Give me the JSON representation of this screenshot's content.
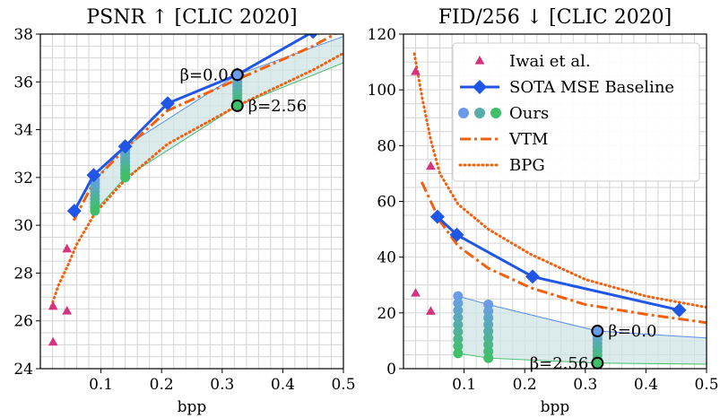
{
  "colors": {
    "iwai": "#d6337f",
    "sota": "#1f56e6",
    "vtm": "#f2600d",
    "bpg": "#f2600d",
    "band_fill": "#cfe3e3",
    "band_upper": "#5b8fe8",
    "band_lower": "#3fbf6a",
    "ours_top": "#6a9be8",
    "ours_bottom": "#3fbf6a",
    "grid": "#d4d4d4"
  },
  "chart_data": [
    {
      "type": "line",
      "title": "PSNR ↑ [CLIC 2020]",
      "xlabel": "bpp",
      "ylabel": "",
      "xlim": [
        0,
        0.5
      ],
      "ylim": [
        24,
        38
      ],
      "xticks": [
        "0.1",
        "0.2",
        "0.3",
        "0.4",
        "0.5"
      ],
      "xtick_values": [
        0.1,
        0.2,
        0.3,
        0.4,
        0.5
      ],
      "yticks": [
        "24",
        "26",
        "28",
        "30",
        "32",
        "34",
        "36",
        "38"
      ],
      "ytick_values": [
        24,
        26,
        28,
        30,
        32,
        34,
        36,
        38
      ],
      "grid": true,
      "series": [
        {
          "key": "iwai",
          "type": "scatter",
          "x": [
            0.021,
            0.021,
            0.044,
            0.044
          ],
          "y": [
            26.6,
            25.1,
            29.0,
            26.4
          ]
        },
        {
          "key": "sota",
          "type": "line",
          "x": [
            0.056,
            0.088,
            0.14,
            0.21,
            0.325,
            0.45
          ],
          "y": [
            30.6,
            32.1,
            33.3,
            35.1,
            36.3,
            38.1
          ]
        },
        {
          "key": "vtm",
          "type": "line",
          "x": [
            0.055,
            0.09,
            0.14,
            0.21,
            0.325,
            0.45,
            0.5
          ],
          "y": [
            30.2,
            31.9,
            33.2,
            34.8,
            36.1,
            37.5,
            38.2
          ]
        },
        {
          "key": "bpg",
          "type": "line",
          "x": [
            0.018,
            0.03,
            0.045,
            0.06,
            0.09,
            0.14,
            0.21,
            0.325,
            0.45,
            0.5
          ],
          "y": [
            26.6,
            27.5,
            28.3,
            29.2,
            30.5,
            31.9,
            33.4,
            35.0,
            36.5,
            37.2
          ]
        },
        {
          "key": "ours",
          "type": "scatter",
          "x": [
            0.09,
            0.14,
            0.325
          ],
          "y_top": [
            31.9,
            33.3,
            36.3
          ],
          "y_bottom": [
            30.6,
            32.0,
            35.0
          ],
          "count": 9
        },
        {
          "key": "band",
          "type": "area",
          "x": [
            0.09,
            0.14,
            0.325,
            0.5
          ],
          "upper": [
            31.9,
            33.3,
            36.3,
            37.9
          ],
          "lower": [
            30.6,
            32.0,
            35.0,
            36.8
          ]
        }
      ],
      "annotations": [
        {
          "text": "β=0.0",
          "x": 0.325,
          "y": 36.3,
          "side": "left"
        },
        {
          "text": "β=2.56",
          "x": 0.325,
          "y": 35.0,
          "side": "right"
        }
      ]
    },
    {
      "type": "line",
      "title": "FID/256 ↓ [CLIC 2020]",
      "xlabel": "bpp",
      "ylabel": "",
      "xlim": [
        0,
        0.5
      ],
      "ylim": [
        0,
        120
      ],
      "xticks": [
        "0.1",
        "0.2",
        "0.3",
        "0.4",
        "0.5"
      ],
      "xtick_values": [
        0.1,
        0.2,
        0.3,
        0.4,
        0.5
      ],
      "yticks": [
        "0",
        "20",
        "40",
        "60",
        "80",
        "100",
        "120"
      ],
      "ytick_values": [
        0,
        20,
        40,
        60,
        80,
        100,
        120
      ],
      "grid": true,
      "legend": "top-right",
      "series": [
        {
          "key": "iwai",
          "name": "Iwai et al.",
          "type": "scatter",
          "x": [
            0.02,
            0.045,
            0.02,
            0.045
          ],
          "y": [
            106.5,
            72.5,
            27.0,
            20.5
          ]
        },
        {
          "key": "sota",
          "name": "SOTA MSE Baseline",
          "type": "line",
          "x": [
            0.056,
            0.088,
            0.213,
            0.455
          ],
          "y": [
            54.5,
            48.0,
            33.0,
            21.0
          ]
        },
        {
          "key": "ours",
          "name": "Ours",
          "type": "scatter",
          "x": [
            0.09,
            0.14,
            0.32
          ],
          "y_top": [
            26.0,
            23.0,
            13.5
          ],
          "y_bottom": [
            5.5,
            3.8,
            2.0
          ],
          "count": 9
        },
        {
          "key": "vtm",
          "name": "VTM",
          "type": "line",
          "x": [
            0.03,
            0.06,
            0.09,
            0.14,
            0.21,
            0.3,
            0.4,
            0.5
          ],
          "y": [
            67,
            53,
            44,
            36,
            29,
            23,
            19.5,
            16.5
          ]
        },
        {
          "key": "bpg",
          "name": "BPG",
          "type": "line",
          "x": [
            0.018,
            0.03,
            0.045,
            0.06,
            0.09,
            0.14,
            0.21,
            0.3,
            0.4,
            0.5
          ],
          "y": [
            113,
            98,
            82,
            70,
            59,
            50,
            41,
            32,
            26,
            22
          ]
        },
        {
          "key": "band",
          "type": "area",
          "x": [
            0.09,
            0.14,
            0.32,
            0.5
          ],
          "upper": [
            26.0,
            23.0,
            13.5,
            11.0
          ],
          "lower": [
            5.5,
            3.8,
            2.0,
            1.6
          ]
        }
      ],
      "annotations": [
        {
          "text": "β=0.0",
          "x": 0.32,
          "y": 13.5,
          "side": "right"
        },
        {
          "text": "β=2.56",
          "x": 0.32,
          "y": 2.0,
          "side": "left"
        }
      ]
    }
  ]
}
